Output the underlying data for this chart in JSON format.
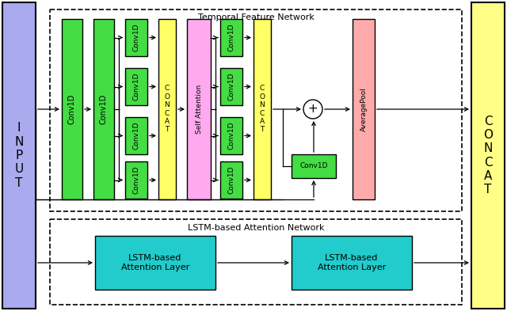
{
  "fig_width": 6.4,
  "fig_height": 3.93,
  "dpi": 100,
  "bg_color": "#ffffff",
  "input_color": "#aaaaee",
  "concat_color": "#ffff88",
  "green_color": "#44dd44",
  "yellow_color": "#ffff66",
  "pink_color": "#ffaaee",
  "salmon_color": "#ffaaaa",
  "cyan_color": "#22cccc",
  "tfn_label": "Temporal Feature Network",
  "lstm_label": "LSTM-based Attention Network",
  "lstm1_label": "LSTM-based\nAttention Layer",
  "lstm2_label": "LSTM-based\nAttention Layer",
  "input_label": "I\nN\nP\nU\nT",
  "concat_label": "C\nO\nN\nC\nA\nT",
  "avgpool_label": "AveragePool",
  "conv1d_label": "Conv1D",
  "concat1_label": "C\nO\nN\nC\nA\nT",
  "concat2_label": "C\nO\nN\nC\nA\nT",
  "sa_label": "Self Attention"
}
